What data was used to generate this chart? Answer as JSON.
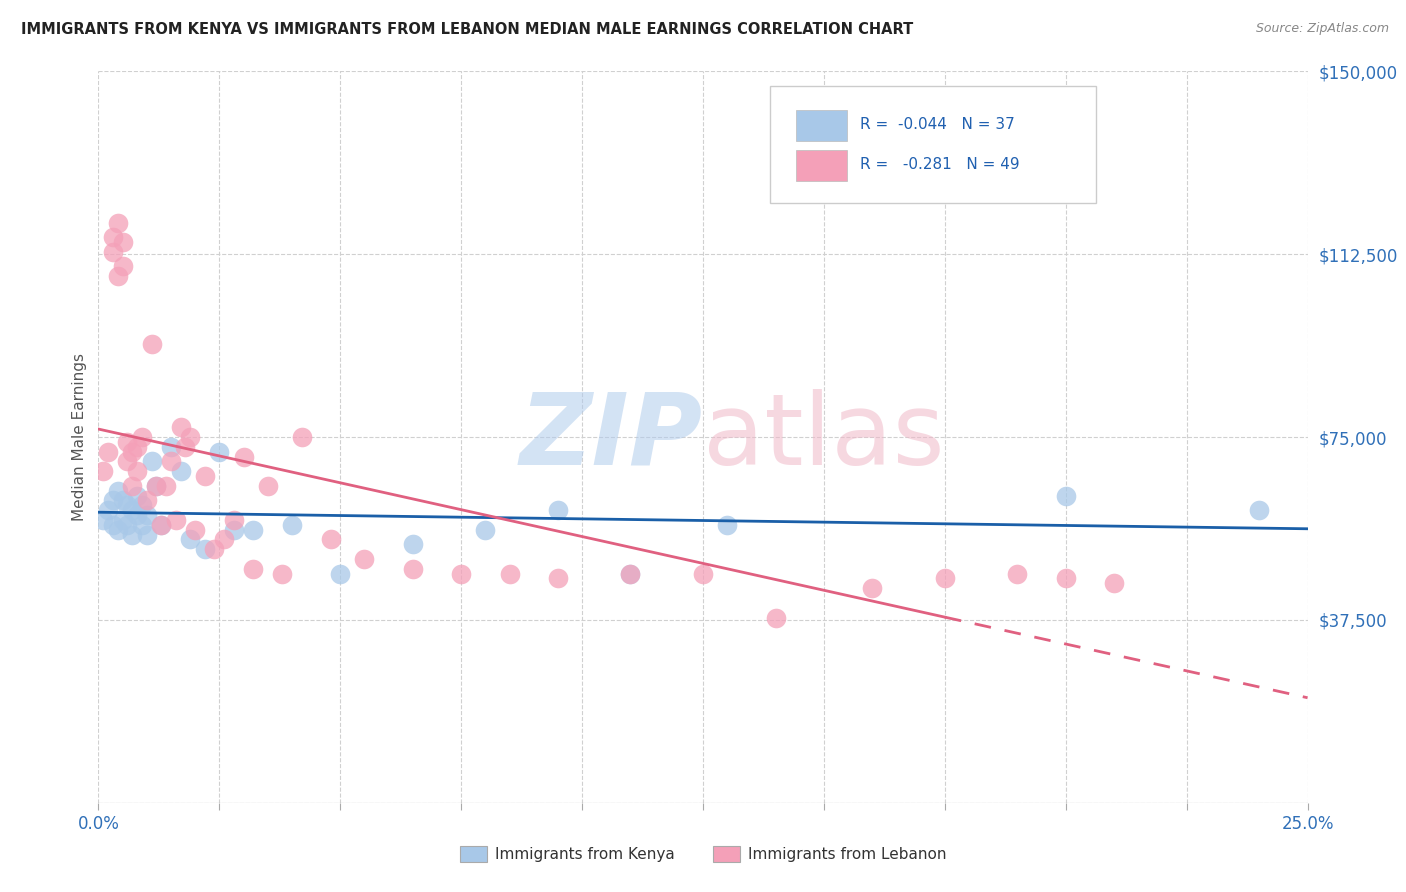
{
  "title": "IMMIGRANTS FROM KENYA VS IMMIGRANTS FROM LEBANON MEDIAN MALE EARNINGS CORRELATION CHART",
  "source": "Source: ZipAtlas.com",
  "ylabel": "Median Male Earnings",
  "y_ticks": [
    0,
    37500,
    75000,
    112500,
    150000
  ],
  "y_tick_labels": [
    "",
    "$37,500",
    "$75,000",
    "$112,500",
    "$150,000"
  ],
  "x_ticks": [
    0,
    0.025,
    0.05,
    0.075,
    0.1,
    0.125,
    0.15,
    0.175,
    0.2,
    0.225,
    0.25
  ],
  "xlim": [
    0,
    0.25
  ],
  "ylim": [
    0,
    150000
  ],
  "kenya_color": "#a8c8e8",
  "lebanon_color": "#f4a0b8",
  "kenya_line_color": "#1a5fa8",
  "lebanon_line_color": "#e06080",
  "background_color": "#ffffff",
  "grid_color": "#d0d0d0",
  "kenya_x": [
    0.001,
    0.002,
    0.003,
    0.003,
    0.004,
    0.004,
    0.005,
    0.005,
    0.006,
    0.006,
    0.007,
    0.007,
    0.008,
    0.008,
    0.009,
    0.009,
    0.01,
    0.01,
    0.011,
    0.012,
    0.013,
    0.015,
    0.017,
    0.019,
    0.022,
    0.025,
    0.028,
    0.032,
    0.04,
    0.05,
    0.065,
    0.08,
    0.095,
    0.11,
    0.13,
    0.2,
    0.24
  ],
  "kenya_y": [
    58000,
    60000,
    57000,
    62000,
    56000,
    64000,
    58000,
    62000,
    57000,
    61000,
    55000,
    60000,
    59000,
    63000,
    57000,
    61000,
    55000,
    59000,
    70000,
    65000,
    57000,
    73000,
    68000,
    54000,
    52000,
    72000,
    56000,
    56000,
    57000,
    47000,
    53000,
    56000,
    60000,
    47000,
    57000,
    63000,
    60000
  ],
  "lebanon_x": [
    0.001,
    0.002,
    0.003,
    0.003,
    0.004,
    0.004,
    0.005,
    0.005,
    0.006,
    0.006,
    0.007,
    0.007,
    0.008,
    0.008,
    0.009,
    0.01,
    0.011,
    0.012,
    0.013,
    0.014,
    0.015,
    0.016,
    0.017,
    0.018,
    0.019,
    0.02,
    0.022,
    0.024,
    0.026,
    0.028,
    0.03,
    0.032,
    0.035,
    0.038,
    0.042,
    0.048,
    0.055,
    0.065,
    0.075,
    0.085,
    0.095,
    0.11,
    0.125,
    0.14,
    0.16,
    0.175,
    0.19,
    0.2,
    0.21
  ],
  "lebanon_y": [
    68000,
    72000,
    113000,
    116000,
    119000,
    108000,
    115000,
    110000,
    74000,
    70000,
    65000,
    72000,
    73000,
    68000,
    75000,
    62000,
    94000,
    65000,
    57000,
    65000,
    70000,
    58000,
    77000,
    73000,
    75000,
    56000,
    67000,
    52000,
    54000,
    58000,
    71000,
    48000,
    65000,
    47000,
    75000,
    54000,
    50000,
    48000,
    47000,
    47000,
    46000,
    47000,
    47000,
    38000,
    44000,
    46000,
    47000,
    46000,
    45000
  ],
  "legend_r_kenya": "R =  -0.044",
  "legend_n_kenya": "N = 37",
  "legend_r_lebanon": "R =   -0.281",
  "legend_n_lebanon": "N = 49"
}
